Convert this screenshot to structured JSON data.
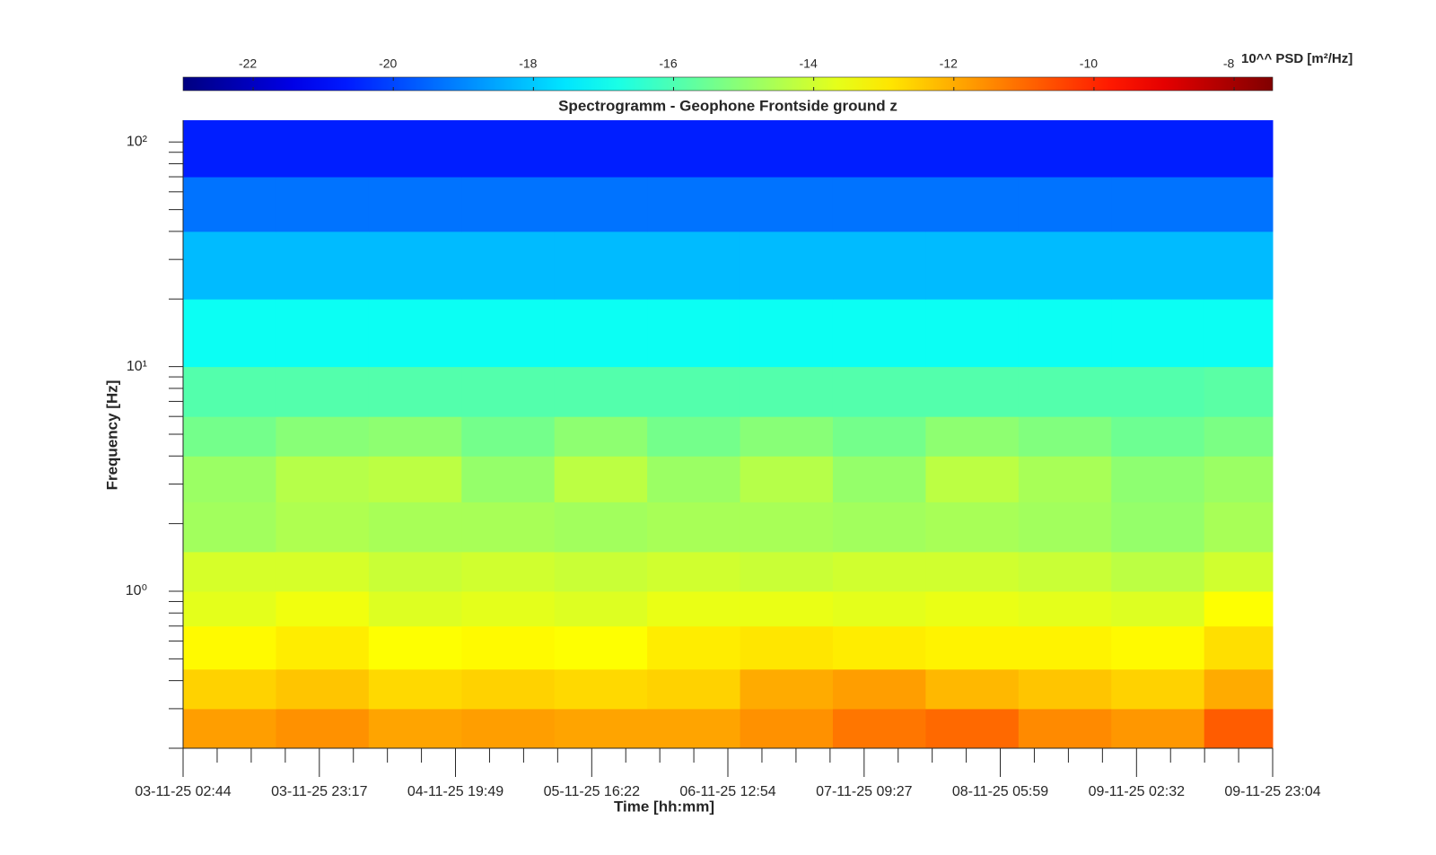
{
  "chart_data": {
    "type": "spectrogram",
    "title": "Spectrogramm - Geophone Frontside ground z",
    "xlabel": "Time [hh:mm]",
    "ylabel": "Frequency [Hz]",
    "colorbar_label": "10^^ PSD [m²/Hz]",
    "colormap": "jet",
    "yscale": "log",
    "xlim": [
      0,
      164.333
    ],
    "ylim": [
      0.2,
      125
    ],
    "clim": [
      -23,
      -7.45
    ],
    "xticks": [
      {
        "value": 0,
        "label": "03-11-25 02:44"
      },
      {
        "value": 20.55,
        "label": "03-11-25 23:17"
      },
      {
        "value": 41.083,
        "label": "04-11-25 19:49"
      },
      {
        "value": 61.633,
        "label": "05-11-25 16:22"
      },
      {
        "value": 82.167,
        "label": "06-11-25 12:54"
      },
      {
        "value": 102.717,
        "label": "07-11-25 09:27"
      },
      {
        "value": 123.25,
        "label": "08-11-25 05:59"
      },
      {
        "value": 143.8,
        "label": "09-11-25 02:32"
      },
      {
        "value": 164.333,
        "label": "09-11-25 23:04"
      }
    ],
    "yticks": [
      {
        "value": 1,
        "label": "10⁰"
      },
      {
        "value": 10,
        "label": "10¹"
      },
      {
        "value": 100,
        "label": "10²"
      }
    ],
    "yminorticks": [
      0.2,
      0.3,
      0.4,
      0.5,
      0.6,
      0.7,
      0.8,
      0.9,
      2,
      3,
      4,
      5,
      6,
      7,
      8,
      9,
      20,
      30,
      40,
      50,
      60,
      70,
      80,
      90
    ],
    "cticks": [
      -22,
      -20,
      -18,
      -16,
      -14,
      -12,
      -10,
      -8
    ],
    "time_edges": [
      0,
      14,
      28,
      42,
      56,
      70,
      84,
      98,
      112,
      126,
      140,
      154,
      164.333
    ],
    "freq_edges": [
      0.2,
      0.3,
      0.45,
      0.7,
      1,
      1.5,
      2.5,
      4,
      6,
      10,
      20,
      40,
      70,
      125
    ],
    "z": [
      [
        -11.8,
        -11.6,
        -11.9,
        -11.8,
        -11.9,
        -11.9,
        -11.6,
        -11.2,
        -11.0,
        -11.5,
        -11.7,
        -10.8
      ],
      [
        -12.6,
        -12.4,
        -12.7,
        -12.6,
        -12.7,
        -12.6,
        -12.0,
        -11.8,
        -12.2,
        -12.4,
        -12.6,
        -12.0
      ],
      [
        -13.2,
        -13.0,
        -13.3,
        -13.2,
        -13.3,
        -13.0,
        -12.9,
        -13.0,
        -13.1,
        -13.1,
        -13.2,
        -12.8
      ],
      [
        -13.7,
        -13.5,
        -13.8,
        -13.7,
        -13.8,
        -13.6,
        -13.6,
        -13.7,
        -13.6,
        -13.7,
        -13.8,
        -13.3
      ],
      [
        -13.9,
        -13.9,
        -14.1,
        -14.0,
        -14.1,
        -14.0,
        -14.1,
        -14.0,
        -14.0,
        -14.1,
        -14.3,
        -14.0
      ],
      [
        -14.7,
        -14.5,
        -14.6,
        -14.6,
        -14.7,
        -14.6,
        -14.6,
        -14.7,
        -14.6,
        -14.7,
        -14.9,
        -14.6
      ],
      [
        -14.8,
        -14.4,
        -14.3,
        -14.9,
        -14.3,
        -14.8,
        -14.4,
        -14.9,
        -14.3,
        -14.6,
        -15.0,
        -14.8
      ],
      [
        -15.4,
        -15.1,
        -15.0,
        -15.4,
        -15.0,
        -15.4,
        -15.1,
        -15.4,
        -15.0,
        -15.2,
        -15.5,
        -15.3
      ],
      [
        -15.9,
        -15.9,
        -15.9,
        -15.9,
        -15.9,
        -15.9,
        -15.9,
        -15.9,
        -15.9,
        -15.9,
        -15.9,
        -15.8
      ],
      [
        -17.0,
        -17.0,
        -17.0,
        -17.0,
        -17.0,
        -17.0,
        -17.0,
        -17.0,
        -17.0,
        -17.0,
        -17.0,
        -17.0
      ],
      [
        -18.2,
        -18.2,
        -18.2,
        -18.2,
        -18.2,
        -18.2,
        -18.2,
        -18.2,
        -18.2,
        -18.2,
        -18.2,
        -18.2
      ],
      [
        -19.3,
        -19.3,
        -19.3,
        -19.3,
        -19.3,
        -19.3,
        -19.3,
        -19.3,
        -19.3,
        -19.3,
        -19.3,
        -19.3
      ],
      [
        -20.6,
        -20.6,
        -20.6,
        -20.6,
        -20.6,
        -20.6,
        -20.6,
        -20.6,
        -20.6,
        -20.6,
        -20.6,
        -20.6
      ]
    ]
  }
}
